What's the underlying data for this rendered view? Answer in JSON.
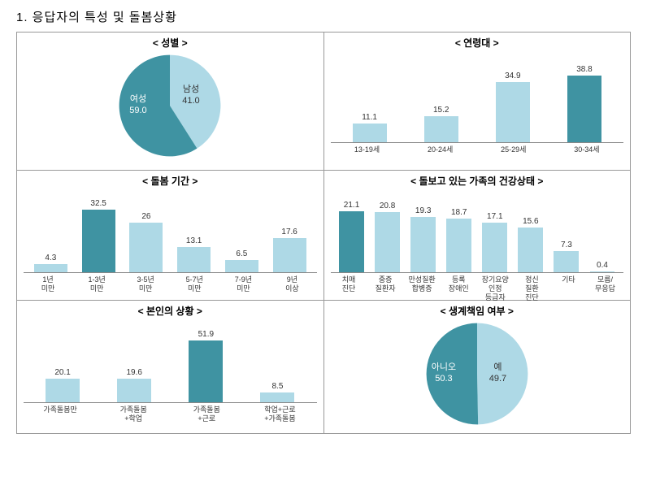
{
  "page_title": "1. 응답자의 특성 및 돌봄상황",
  "colors": {
    "dark_teal": "#3f93a2",
    "light_blue": "#aed9e6",
    "text": "#333333",
    "white": "#ffffff"
  },
  "charts": {
    "gender": {
      "title": "< 성별 >",
      "type": "pie",
      "slices": [
        {
          "label": "여성",
          "value": 59.0,
          "color": "#3f93a2",
          "text_color": "#ffffff"
        },
        {
          "label": "남성",
          "value": 41.0,
          "color": "#aed9e6",
          "text_color": "#333333"
        }
      ]
    },
    "age": {
      "title": "< 연령대 >",
      "type": "bar",
      "categories": [
        "13-19세",
        "20-24세",
        "25-29세",
        "30-34세"
      ],
      "values": [
        11.1,
        15.2,
        34.9,
        38.8
      ],
      "colors": [
        "#aed9e6",
        "#aed9e6",
        "#aed9e6",
        "#3f93a2"
      ],
      "max": 45
    },
    "duration": {
      "title": "< 돌봄 기간 >",
      "type": "bar",
      "categories": [
        "1년\n미만",
        "1-3년\n미만",
        "3-5년\n미만",
        "5-7년\n미만",
        "7-9년\n미만",
        "9년\n이상"
      ],
      "values": [
        4.3,
        32.5,
        26.0,
        13.1,
        6.5,
        17.6
      ],
      "colors": [
        "#aed9e6",
        "#3f93a2",
        "#aed9e6",
        "#aed9e6",
        "#aed9e6",
        "#aed9e6"
      ],
      "max": 36
    },
    "health": {
      "title": "< 돌보고 있는 가족의 건강상태 >",
      "type": "bar",
      "categories": [
        "치매\n진단",
        "중증\n질환자",
        "만성질환\n합병증",
        "등록\n장애인",
        "장기요양\n인정\n등급자",
        "정신\n질환\n진단",
        "기타",
        "모름/\n무응답"
      ],
      "values": [
        21.1,
        20.8,
        19.3,
        18.7,
        17.1,
        15.6,
        7.3,
        0.4
      ],
      "colors": [
        "#3f93a2",
        "#aed9e6",
        "#aed9e6",
        "#aed9e6",
        "#aed9e6",
        "#aed9e6",
        "#aed9e6",
        "#aed9e6"
      ],
      "max": 24
    },
    "situation": {
      "title": "< 본인의 상황 >",
      "type": "bar",
      "categories": [
        "가족돌봄만",
        "가족돌봄\n+학업",
        "가족돌봄\n+근로",
        "학업+근로\n+가족돌봄"
      ],
      "values": [
        20.1,
        19.6,
        51.9,
        8.5
      ],
      "colors": [
        "#aed9e6",
        "#aed9e6",
        "#3f93a2",
        "#aed9e6"
      ],
      "max": 58
    },
    "breadwinner": {
      "title": "< 생계책임 여부 >",
      "type": "pie",
      "slices": [
        {
          "label": "아니오",
          "value": 50.3,
          "color": "#3f93a2",
          "text_color": "#ffffff"
        },
        {
          "label": "예",
          "value": 49.7,
          "color": "#aed9e6",
          "text_color": "#333333"
        }
      ]
    }
  }
}
